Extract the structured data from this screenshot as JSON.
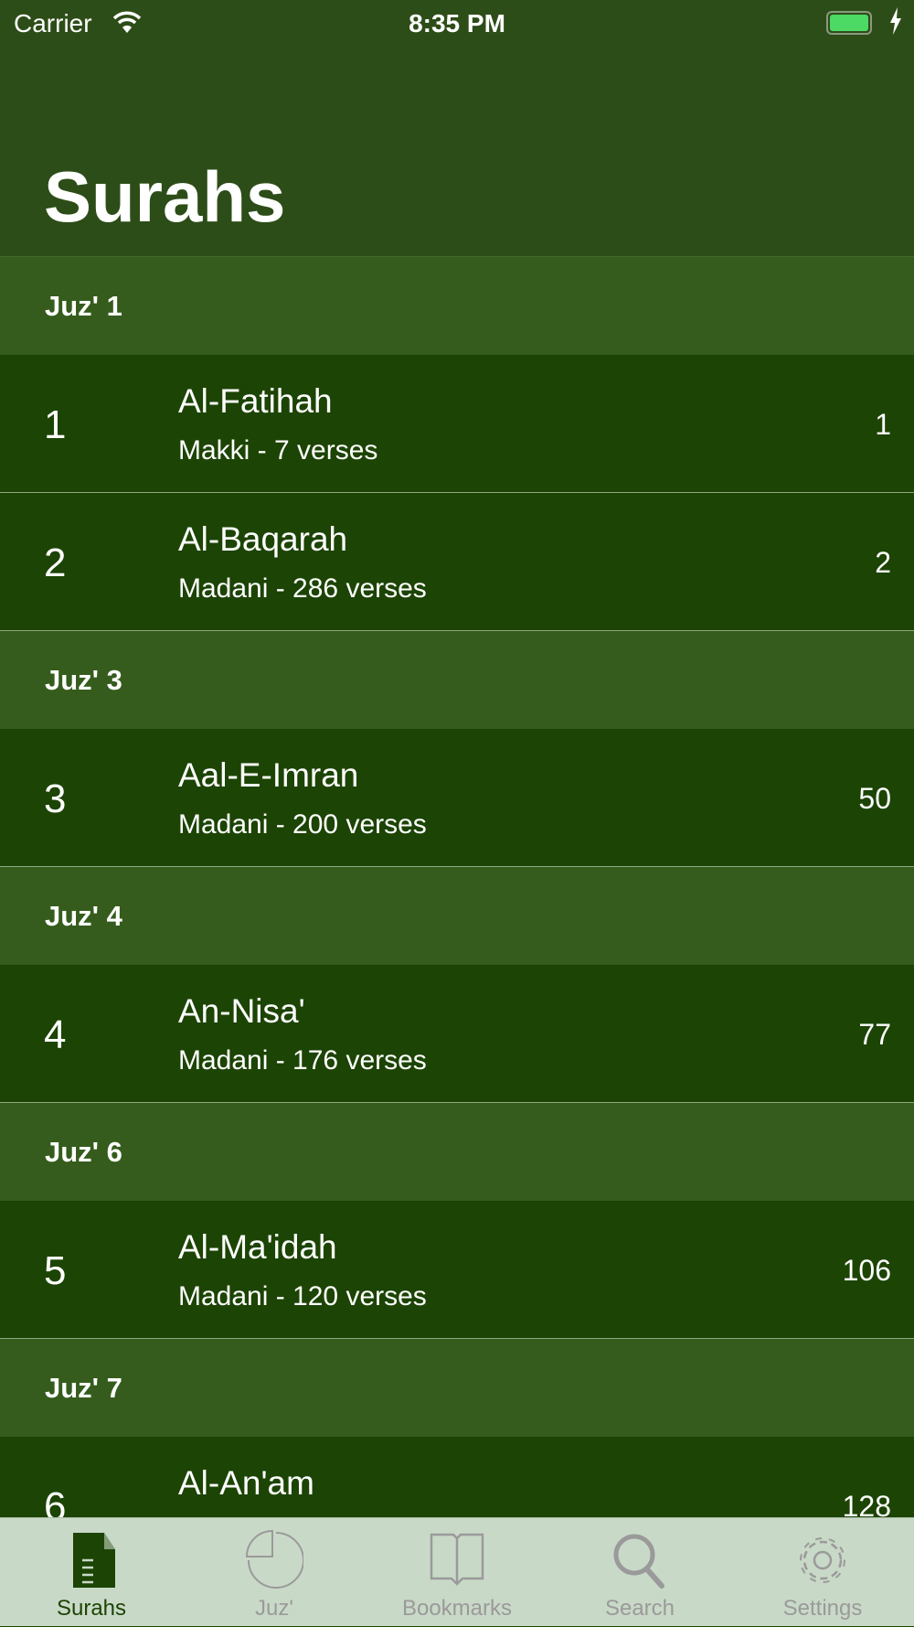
{
  "status_bar": {
    "carrier": "Carrier",
    "time": "8:35 PM",
    "battery_level": 1.0,
    "charging": true
  },
  "header": {
    "title": "Surahs"
  },
  "sections": [
    {
      "label": "Juz' 1",
      "rows": [
        {
          "number": "1",
          "name": "Al-Fatihah",
          "subtitle": "Makki - 7 verses",
          "page": "1"
        },
        {
          "number": "2",
          "name": "Al-Baqarah",
          "subtitle": "Madani - 286 verses",
          "page": "2"
        }
      ]
    },
    {
      "label": "Juz' 3",
      "rows": [
        {
          "number": "3",
          "name": "Aal-E-Imran",
          "subtitle": "Madani - 200 verses",
          "page": "50"
        }
      ]
    },
    {
      "label": "Juz' 4",
      "rows": [
        {
          "number": "4",
          "name": "An-Nisa'",
          "subtitle": "Madani - 176 verses",
          "page": "77"
        }
      ]
    },
    {
      "label": "Juz' 6",
      "rows": [
        {
          "number": "5",
          "name": "Al-Ma'idah",
          "subtitle": "Madani - 120 verses",
          "page": "106"
        }
      ]
    },
    {
      "label": "Juz' 7",
      "rows": [
        {
          "number": "6",
          "name": "Al-An'am",
          "subtitle": "",
          "page": "128"
        }
      ]
    }
  ],
  "tabbar": {
    "items": [
      {
        "label": "Surahs",
        "icon": "document-icon",
        "active": true
      },
      {
        "label": "Juz'",
        "icon": "pie-icon",
        "active": false
      },
      {
        "label": "Bookmarks",
        "icon": "book-icon",
        "active": false
      },
      {
        "label": "Search",
        "icon": "search-icon",
        "active": false
      },
      {
        "label": "Settings",
        "icon": "gear-icon",
        "active": false
      }
    ]
  },
  "colors": {
    "header": "#2d4d18",
    "section": "#355c1c",
    "row": "#1c4404",
    "tabbar": "#c9d9c7",
    "active_tab": "#1c4404",
    "inactive_tab": "#9a9a9a"
  }
}
